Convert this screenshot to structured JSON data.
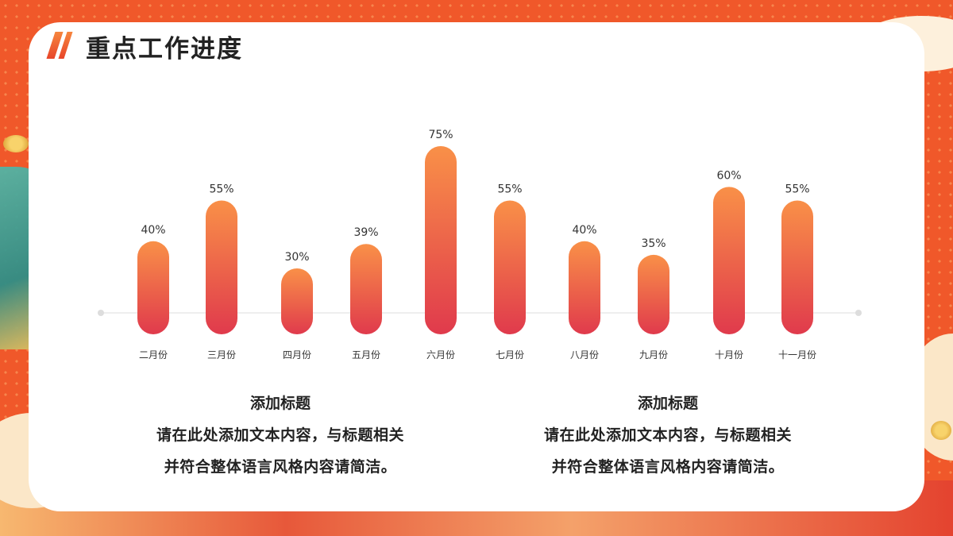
{
  "page": {
    "title": "重点工作进度"
  },
  "theme": {
    "accent": "#f0582a",
    "bar_top": "#f99048",
    "bar_bottom": "#e03a4c",
    "baseline": "#eeeeee"
  },
  "chart_data": {
    "type": "bar",
    "categories": [
      "二月份",
      "三月份",
      "四月份",
      "五月份",
      "六月份",
      "七月份",
      "八月份",
      "九月份",
      "十月份",
      "十一月份"
    ],
    "values": [
      40,
      55,
      30,
      39,
      75,
      55,
      40,
      35,
      60,
      55
    ],
    "data_labels": [
      "40%",
      "55%",
      "30%",
      "39%",
      "75%",
      "55%",
      "40%",
      "35%",
      "60%",
      "55%"
    ],
    "unit": "%",
    "title": "",
    "xlabel": "",
    "ylabel": "",
    "ylim": [
      0,
      100
    ],
    "grid": false,
    "legend": "none"
  },
  "text_blocks": [
    {
      "title": "添加标题",
      "body": "请在此处添加文本内容，与标题相关并符合整体语言风格内容请简洁。"
    },
    {
      "title": "添加标题",
      "body": "请在此处添加文本内容，与标题相关并符合整体语言风格内容请简洁。"
    }
  ]
}
